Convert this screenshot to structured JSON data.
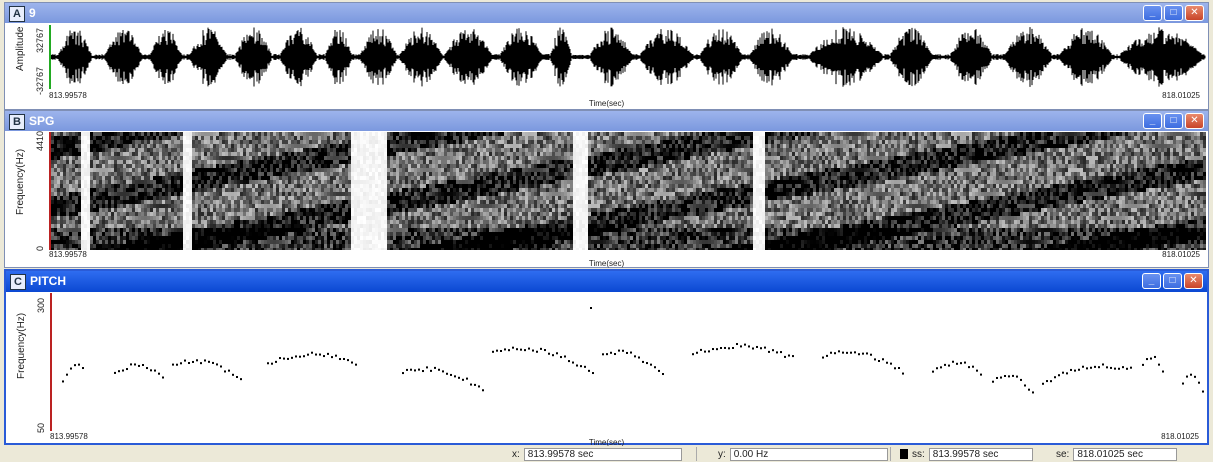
{
  "windows": {
    "a": {
      "letter": "A",
      "title": "9",
      "ymax": "32767",
      "ymin": "-32767",
      "ylabel": "Amplitude",
      "t_start": "813.99578",
      "t_end": "818.01025",
      "xlabel": "Time(sec)"
    },
    "b": {
      "letter": "B",
      "title": "SPG",
      "ymax": "4410",
      "ymin": "0",
      "ylabel": "Frequency(Hz)",
      "t_start": "813.99578",
      "t_end": "818.01025",
      "xlabel": "Time(sec)"
    },
    "c": {
      "letter": "C",
      "title": "PITCH",
      "ymax": "300",
      "ymin": "50",
      "ylabel": "Frequency(Hz)",
      "t_start": "813.99578",
      "t_end": "818.01025",
      "xlabel": "Time(sec)"
    }
  },
  "window_controls": {
    "minimize": "_",
    "maximize": "□",
    "close": "✕"
  },
  "status": {
    "x_label": "x:",
    "x_value": "813.99578 sec",
    "y_label": "y:",
    "y_value": "0.00 Hz",
    "ss_label": "ss:",
    "ss_value": "813.99578 sec",
    "se_label": "se:",
    "se_value": "818.01025 sec"
  },
  "colors": {
    "cursor_red": "#b22222",
    "cursor_green": "#22aa22",
    "active_title": "#0b48d2",
    "inactive_title": "#7b98de"
  }
}
